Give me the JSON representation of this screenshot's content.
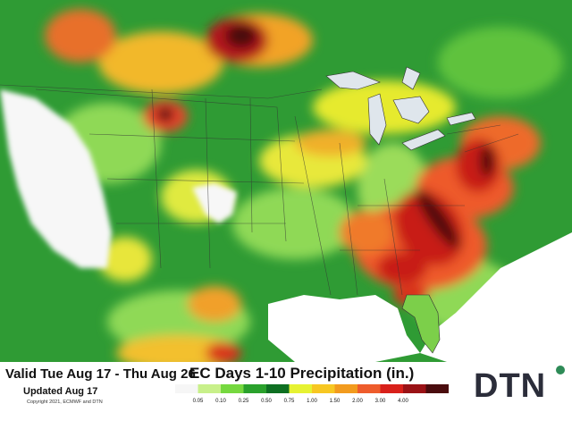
{
  "footer": {
    "valid_text": "Valid Tue Aug 17 - Thu Aug 26",
    "updated_text": "Updated Aug 17",
    "copyright_text": "Copyright 2021, ECMWF and DTN",
    "title": "EC Days 1-10 Precipitation (in.)",
    "brand": "DTN",
    "brand_colors": {
      "text": "#2b2d3a",
      "dot": "#2e8b57"
    }
  },
  "legend": {
    "colors": [
      "#f6f6f6",
      "#c8f08a",
      "#76d83f",
      "#2aa12c",
      "#0e6f22",
      "#e6f232",
      "#f7c722",
      "#f29b1e",
      "#ee5c2c",
      "#d8201a",
      "#9a1216",
      "#4a0c0e"
    ],
    "labels": [
      "0.05",
      "0.10",
      "0.25",
      "0.50",
      "0.75",
      "1.00",
      "1.50",
      "2.00",
      "3.00",
      "4.00"
    ]
  }
}
